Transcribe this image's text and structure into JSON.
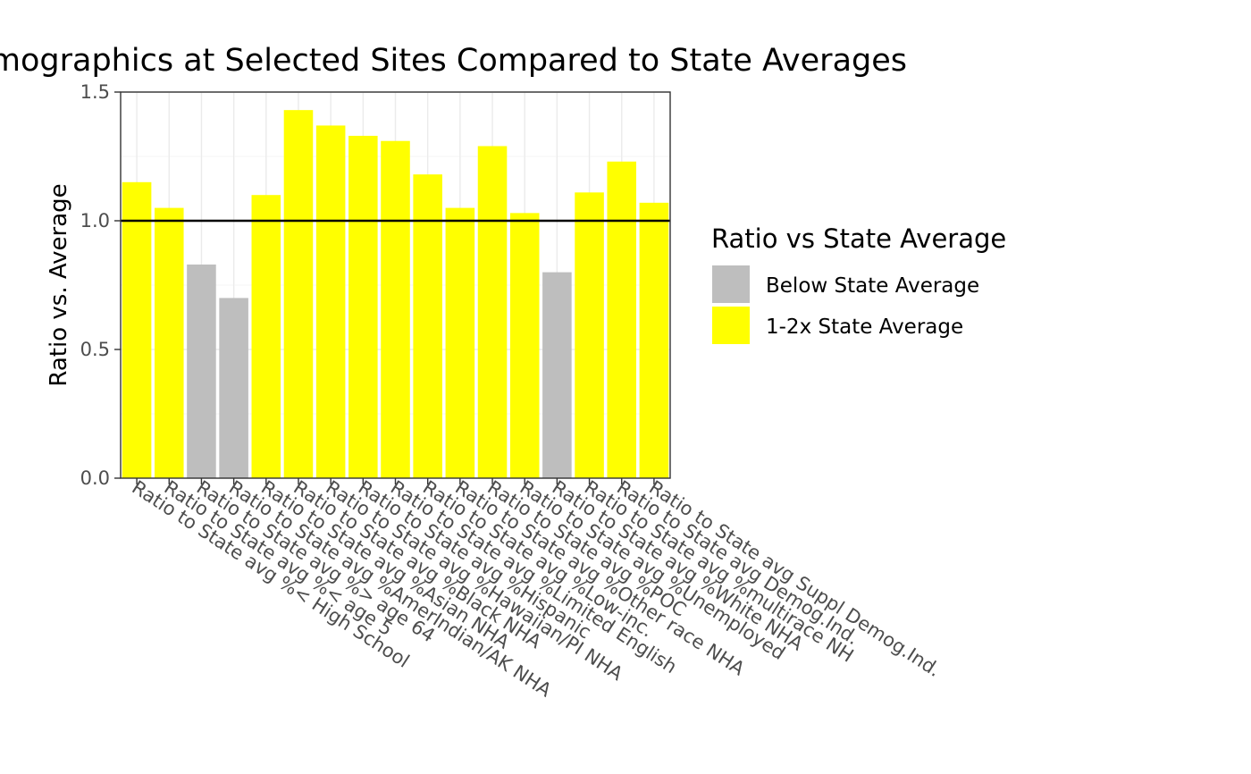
{
  "chart_data": {
    "type": "bar",
    "title": "Demographics at Selected Sites Compared to State Averages",
    "xlabel": "",
    "ylabel": "Ratio vs. Average",
    "ylim": [
      0,
      1.5
    ],
    "yticks": [
      0.0,
      0.5,
      1.0,
      1.5
    ],
    "ytick_labels": [
      "0.0",
      "0.5",
      "1.0",
      "1.5"
    ],
    "reference_line": 1.0,
    "grid": true,
    "legend_placement": "right",
    "categories": [
      "Ratio to State avg %< High School",
      "Ratio to State avg %< age 5",
      "Ratio to State avg %> age 64",
      "Ratio to State avg %AmerIndian/AK NHA",
      "Ratio to State avg %Asian NHA",
      "Ratio to State avg %Black NHA",
      "Ratio to State avg %Hawaiian/PI NHA",
      "Ratio to State avg %Hispanic",
      "Ratio to State avg %Limited English",
      "Ratio to State avg %Low-inc.",
      "Ratio to State avg %Other race NHA",
      "Ratio to State avg %POC",
      "Ratio to State avg %Unemployed",
      "Ratio to State avg %White NHA",
      "Ratio to State avg %multirace NH",
      "Ratio to State avg Demog.Ind.",
      "Ratio to State avg Suppl Demog.Ind."
    ],
    "values": [
      1.15,
      1.05,
      0.83,
      0.7,
      1.1,
      1.43,
      1.37,
      1.33,
      1.31,
      1.18,
      1.05,
      1.29,
      1.03,
      0.8,
      1.11,
      1.23,
      1.07
    ],
    "groups": [
      "1-2x",
      "1-2x",
      "below",
      "below",
      "1-2x",
      "1-2x",
      "1-2x",
      "1-2x",
      "1-2x",
      "1-2x",
      "1-2x",
      "1-2x",
      "1-2x",
      "below",
      "1-2x",
      "1-2x",
      "1-2x"
    ],
    "legend": {
      "title": "Ratio vs State Average",
      "entries": [
        {
          "key": "below",
          "label": "Below State Average",
          "color": "#bebebe"
        },
        {
          "key": "1-2x",
          "label": "1-2x State Average",
          "color": "#ffff00"
        }
      ]
    }
  }
}
